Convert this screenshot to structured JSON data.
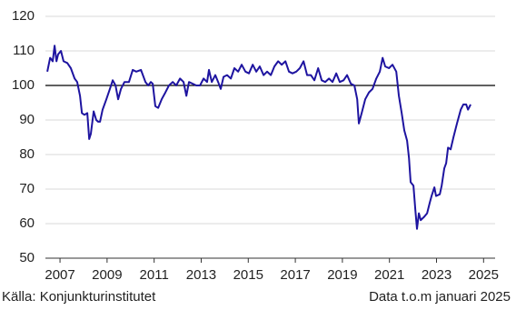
{
  "chart_data": {
    "type": "line",
    "series": [
      {
        "color": "#1e14a0",
        "x": [
          2006.96,
          2007.08,
          2007.19,
          2007.27,
          2007.35,
          2007.42,
          2007.54,
          2007.65,
          2007.81,
          2007.96,
          2008.12,
          2008.23,
          2008.35,
          2008.43,
          2008.54,
          2008.66,
          2008.74,
          2008.81,
          2008.93,
          2009.04,
          2009.12,
          2009.2,
          2009.31,
          2009.47,
          2009.62,
          2009.74,
          2009.86,
          2009.97,
          2010.09,
          2010.24,
          2010.43,
          2010.59,
          2010.74,
          2010.94,
          2011.13,
          2011.25,
          2011.36,
          2011.44,
          2011.55,
          2011.67,
          2011.82,
          2011.98,
          2012.13,
          2012.29,
          2012.44,
          2012.6,
          2012.75,
          2012.87,
          2012.98,
          2013.14,
          2013.29,
          2013.45,
          2013.6,
          2013.75,
          2013.83,
          2013.95,
          2014.1,
          2014.22,
          2014.33,
          2014.45,
          2014.6,
          2014.76,
          2014.91,
          2015.07,
          2015.22,
          2015.38,
          2015.53,
          2015.69,
          2015.84,
          2015.99,
          2016.15,
          2016.3,
          2016.46,
          2016.61,
          2016.77,
          2016.92,
          2017.08,
          2017.23,
          2017.38,
          2017.54,
          2017.69,
          2017.85,
          2018.0,
          2018.16,
          2018.31,
          2018.47,
          2018.62,
          2018.77,
          2018.93,
          2019.08,
          2019.24,
          2019.39,
          2019.55,
          2019.7,
          2019.86,
          2020.01,
          2020.13,
          2020.2,
          2020.32,
          2020.47,
          2020.63,
          2020.78,
          2020.94,
          2021.09,
          2021.21,
          2021.32,
          2021.48,
          2021.63,
          2021.79,
          2021.9,
          2022.02,
          2022.13,
          2022.25,
          2022.33,
          2022.4,
          2022.52,
          2022.6,
          2022.67,
          2022.75,
          2022.83,
          2022.98,
          2023.1,
          2023.21,
          2023.29,
          2023.41,
          2023.48,
          2023.64,
          2023.72,
          2023.83,
          2023.91,
          2023.99,
          2024.1,
          2024.22,
          2024.37,
          2024.53,
          2024.64,
          2024.76,
          2024.84,
          2024.95
        ],
        "values": [
          104,
          108,
          107,
          111.5,
          107,
          109,
          110,
          107,
          106.5,
          105,
          102,
          101,
          97,
          92,
          91.5,
          92,
          84.5,
          86,
          92.5,
          90,
          89.5,
          89.5,
          93,
          96,
          99,
          101.5,
          100,
          96,
          99,
          101,
          101,
          104.5,
          104,
          104.5,
          101,
          100,
          101,
          100.5,
          94,
          93.5,
          96,
          98,
          100,
          101,
          100,
          102,
          101,
          97,
          101,
          100.5,
          100,
          100,
          102,
          101,
          104.5,
          101,
          103,
          101,
          99,
          102.5,
          103,
          102,
          105,
          104,
          106,
          104,
          103.5,
          106,
          104,
          105.5,
          103,
          104,
          103,
          105.5,
          107,
          106,
          107,
          104,
          103.5,
          104,
          105,
          107,
          103,
          103,
          101.5,
          105,
          101.5,
          101,
          102,
          101,
          103.5,
          101,
          101.5,
          103,
          100.5,
          100,
          96,
          89,
          92,
          96,
          98,
          99,
          102,
          104,
          108,
          105.5,
          105,
          106,
          104,
          97,
          92,
          87,
          84,
          79,
          72,
          71,
          64,
          58.5,
          63,
          61,
          62,
          63,
          66,
          68,
          70.5,
          68,
          68.5,
          71,
          76,
          77.5,
          82,
          81.5,
          85,
          89,
          93,
          94.5,
          94.5,
          93,
          94.5
        ]
      }
    ],
    "xlim": [
      2006.88,
      2025.99
    ],
    "xticks": [
      {
        "value": 2007.5,
        "label": "2007"
      },
      {
        "value": 2009.5,
        "label": "2009"
      },
      {
        "value": 2011.5,
        "label": "2011"
      },
      {
        "value": 2013.5,
        "label": "2013"
      },
      {
        "value": 2015.5,
        "label": "2015"
      },
      {
        "value": 2017.5,
        "label": "2017"
      },
      {
        "value": 2019.5,
        "label": "2019"
      },
      {
        "value": 2021.5,
        "label": "2021"
      },
      {
        "value": 2023.5,
        "label": "2023"
      },
      {
        "value": 2025.5,
        "label": "2025"
      }
    ],
    "ylim": [
      50,
      120
    ],
    "yticks": [
      50,
      60,
      70,
      80,
      90,
      100,
      110,
      120
    ],
    "grid": true,
    "reference_line": 100,
    "source": "Källa: Konjunkturinstitutet",
    "note": "Data t.o.m januari 2025"
  }
}
